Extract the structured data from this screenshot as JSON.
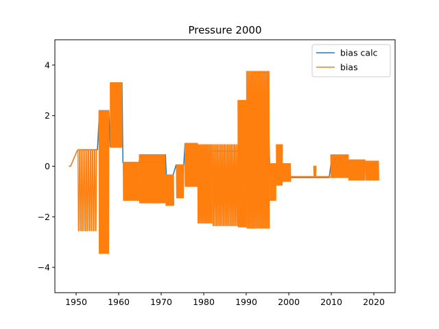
{
  "chart_data": {
    "type": "line",
    "title": "Pressure 2000",
    "xlabel": "",
    "ylabel": "",
    "xlim": [
      1945,
      2025
    ],
    "ylim": [
      -5,
      5
    ],
    "xticks": [
      1950,
      1960,
      1970,
      1980,
      1990,
      2000,
      2010,
      2020
    ],
    "yticks": [
      -4,
      -2,
      0,
      2,
      4
    ],
    "grid": false,
    "legend_position": "top-right",
    "colors": {
      "bias_calc": "#1f77b4",
      "bias": "#ff7f0e"
    },
    "series": [
      {
        "name": "bias calc",
        "segments": [
          [
            1948.3,
            0.0
          ],
          [
            1948.7,
            0.0
          ],
          [
            1950.2,
            0.6
          ],
          [
            1950.5,
            0.65
          ],
          [
            1951.5,
            0.65
          ],
          [
            1955.0,
            0.65
          ],
          [
            1955.5,
            2.2
          ],
          [
            1957.7,
            2.2
          ],
          [
            1958.0,
            0.75
          ],
          [
            1958.2,
            3.3
          ],
          [
            1960.8,
            3.3
          ],
          [
            1961.0,
            0.15
          ],
          [
            1964.8,
            0.15
          ],
          [
            1965.0,
            0.45
          ],
          [
            1971.0,
            0.45
          ],
          [
            1971.2,
            -0.35
          ],
          [
            1972.8,
            -0.35
          ],
          [
            1973.5,
            0.05
          ],
          [
            1975.3,
            0.05
          ],
          [
            1975.6,
            0.9
          ],
          [
            1978.5,
            0.9
          ],
          [
            1979.0,
            0.6
          ],
          [
            1988.0,
            0.6
          ],
          [
            1988.5,
            0.9
          ],
          [
            1989.5,
            2.0
          ],
          [
            1991.5,
            3.7
          ],
          [
            1995.0,
            3.7
          ],
          [
            1995.5,
            0.0
          ],
          [
            1999.5,
            0.0
          ],
          [
            2000.0,
            -0.45
          ],
          [
            2009.5,
            -0.45
          ],
          [
            2010.0,
            0.2
          ],
          [
            2015.0,
            0.2
          ],
          [
            2018.0,
            -0.1
          ],
          [
            2020.5,
            -0.05
          ],
          [
            2021.2,
            0.0
          ]
        ],
        "bands": []
      },
      {
        "name": "bias",
        "line": [
          [
            1948.3,
            0.0
          ],
          [
            1948.7,
            0.0
          ],
          [
            1950.2,
            0.6
          ],
          [
            1950.5,
            0.65
          ],
          [
            1951.5,
            0.65
          ]
        ],
        "bands": [
          {
            "x0": 1950.3,
            "x1": 1955.0,
            "ymin": -2.55,
            "ymax": 0.65,
            "period": 0.5
          },
          {
            "x0": 1955.3,
            "x1": 1957.7,
            "ymin": -3.45,
            "ymax": 2.2,
            "period": 0.3
          },
          {
            "x0": 1958.0,
            "x1": 1960.8,
            "ymin": 0.75,
            "ymax": 3.3,
            "period": 0.15
          },
          {
            "x0": 1961.0,
            "x1": 1964.8,
            "ymin": -1.35,
            "ymax": 0.15,
            "period": 0.3
          },
          {
            "x0": 1964.8,
            "x1": 1971.0,
            "ymin": -1.45,
            "ymax": 0.45,
            "period": 0.3
          },
          {
            "x0": 1971.0,
            "x1": 1973.0,
            "ymin": -1.55,
            "ymax": -0.35,
            "period": 0.3
          },
          {
            "x0": 1973.5,
            "x1": 1975.3,
            "ymin": -1.25,
            "ymax": 0.05,
            "period": 0.3
          },
          {
            "x0": 1975.5,
            "x1": 1978.5,
            "ymin": -0.8,
            "ymax": 0.9,
            "period": 0.3
          },
          {
            "x0": 1978.5,
            "x1": 1982.0,
            "ymin": -2.25,
            "ymax": 0.85,
            "period": 0.35
          },
          {
            "x0": 1982.0,
            "x1": 1988.0,
            "ymin": -2.35,
            "ymax": 0.85,
            "period": 0.4
          },
          {
            "x0": 1988.0,
            "x1": 1990.0,
            "ymin": -2.4,
            "ymax": 2.6,
            "period": 0.25
          },
          {
            "x0": 1990.0,
            "x1": 1995.5,
            "ymin": -2.45,
            "ymax": 3.75,
            "period": 0.35
          },
          {
            "x0": 1995.5,
            "x1": 1997.0,
            "ymin": -1.35,
            "ymax": 0.1,
            "period": 0.3
          },
          {
            "x0": 1997.0,
            "x1": 1998.5,
            "ymin": -0.75,
            "ymax": 0.85,
            "period": 0.3
          },
          {
            "x0": 1998.5,
            "x1": 2000.5,
            "ymin": -0.6,
            "ymax": 0.1,
            "period": 0.3
          },
          {
            "x0": 2005.8,
            "x1": 2006.5,
            "ymin": -0.45,
            "ymax": 0.0,
            "period": 0.3
          },
          {
            "x0": 2009.8,
            "x1": 2014.0,
            "ymin": -0.45,
            "ymax": 0.45,
            "period": 0.3
          },
          {
            "x0": 2014.0,
            "x1": 2018.0,
            "ymin": -0.55,
            "ymax": 0.25,
            "period": 0.3
          },
          {
            "x0": 2018.0,
            "x1": 2021.2,
            "ymin": -0.55,
            "ymax": 0.2,
            "period": 0.3
          }
        ],
        "flat": [
          {
            "x0": 2000.5,
            "x1": 2009.8,
            "y": -0.42
          }
        ]
      }
    ]
  }
}
